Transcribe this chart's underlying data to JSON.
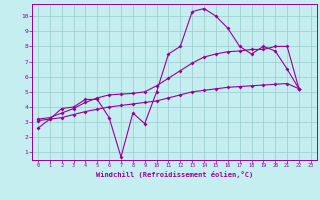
{
  "bg_color": "#c5eef0",
  "line_color": "#990099",
  "grid_color": "#99cccc",
  "xlim": [
    -0.5,
    23.5
  ],
  "ylim": [
    0.5,
    10.8
  ],
  "xticks": [
    0,
    1,
    2,
    3,
    4,
    5,
    6,
    7,
    8,
    9,
    10,
    11,
    12,
    13,
    14,
    15,
    16,
    17,
    18,
    19,
    20,
    21,
    22,
    23
  ],
  "yticks": [
    1,
    2,
    3,
    4,
    5,
    6,
    7,
    8,
    9,
    10
  ],
  "xlabel": "Windchill (Refroidissement éolien,°C)",
  "line_wavy": {
    "x": [
      0,
      1,
      2,
      3,
      4,
      5,
      6,
      7,
      8,
      9,
      10,
      11,
      12,
      13,
      14,
      15,
      16,
      17,
      18,
      19,
      20,
      21,
      22
    ],
    "y": [
      2.6,
      3.2,
      3.9,
      4.0,
      4.5,
      4.5,
      3.3,
      0.7,
      3.6,
      2.9,
      5.0,
      7.5,
      8.0,
      10.3,
      10.5,
      10.0,
      9.2,
      8.0,
      7.5,
      8.0,
      7.7,
      6.5,
      5.2
    ]
  },
  "line_low": {
    "x": [
      0,
      1,
      2,
      3,
      4,
      5,
      6,
      7,
      8,
      9,
      10,
      11,
      12,
      13,
      14,
      15,
      16,
      17,
      18,
      19,
      20,
      21,
      22
    ],
    "y": [
      3.1,
      3.2,
      3.3,
      3.5,
      3.7,
      3.85,
      4.0,
      4.1,
      4.2,
      4.3,
      4.4,
      4.6,
      4.8,
      5.0,
      5.1,
      5.2,
      5.3,
      5.35,
      5.4,
      5.45,
      5.5,
      5.55,
      5.2
    ]
  },
  "line_high": {
    "x": [
      0,
      1,
      2,
      3,
      4,
      5,
      6,
      7,
      8,
      9,
      10,
      11,
      12,
      13,
      14,
      15,
      16,
      17,
      18,
      19,
      20,
      21,
      22
    ],
    "y": [
      3.2,
      3.3,
      3.6,
      3.9,
      4.3,
      4.6,
      4.8,
      4.85,
      4.9,
      5.0,
      5.4,
      5.9,
      6.4,
      6.9,
      7.3,
      7.5,
      7.65,
      7.7,
      7.8,
      7.8,
      8.0,
      8.0,
      5.2
    ]
  }
}
